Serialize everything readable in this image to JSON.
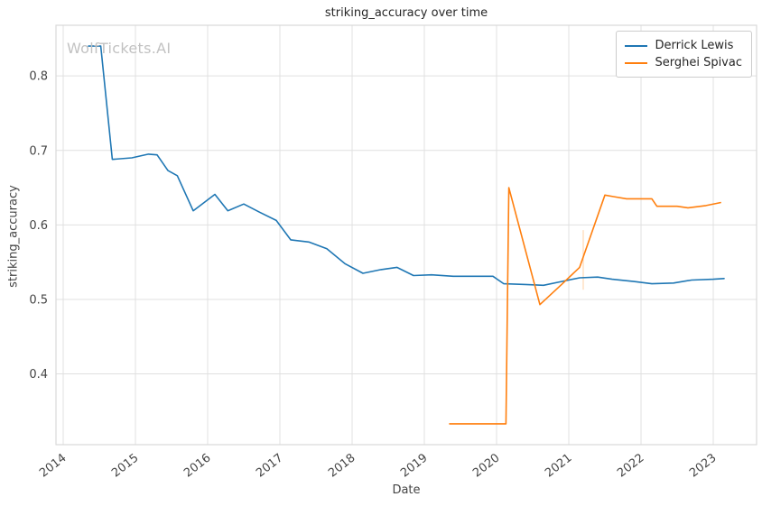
{
  "figure": {
    "watermark": "WolfTickets.AI"
  },
  "chart_data": {
    "type": "line",
    "title": "striking_accuracy over time",
    "xlabel": "Date",
    "ylabel": "striking_accuracy",
    "xlim": [
      2013.9,
      2023.6
    ],
    "ylim": [
      0.305,
      0.868
    ],
    "xticks": [
      2014,
      2015,
      2016,
      2017,
      2018,
      2019,
      2020,
      2021,
      2022,
      2023
    ],
    "yticks": [
      0.4,
      0.5,
      0.6,
      0.7,
      0.8
    ],
    "grid": true,
    "legend_position": "upper right",
    "colors": {
      "grid": "#e0e0e0",
      "axis_border": "#d9d9d9",
      "tick_text": "#444444",
      "title_text": "#262626",
      "watermark_text": "#c2c2c2",
      "series_blue": "#1f77b4",
      "series_orange": "#ff7f0e"
    },
    "series": [
      {
        "name": "Derrick Lewis",
        "color": "#1f77b4",
        "x": [
          2014.35,
          2014.52,
          2014.68,
          2014.95,
          2015.18,
          2015.3,
          2015.45,
          2015.58,
          2015.8,
          2016.1,
          2016.28,
          2016.5,
          2016.72,
          2016.95,
          2017.15,
          2017.4,
          2017.65,
          2017.9,
          2018.15,
          2018.4,
          2018.62,
          2018.85,
          2019.1,
          2019.4,
          2019.7,
          2019.95,
          2020.1,
          2020.4,
          2020.65,
          2020.9,
          2021.15,
          2021.4,
          2021.6,
          2021.9,
          2022.15,
          2022.45,
          2022.7,
          2023.0,
          2023.15
        ],
        "y": [
          0.84,
          0.84,
          0.688,
          0.69,
          0.695,
          0.694,
          0.673,
          0.666,
          0.619,
          0.641,
          0.619,
          0.628,
          0.617,
          0.606,
          0.58,
          0.577,
          0.568,
          0.548,
          0.535,
          0.54,
          0.543,
          0.532,
          0.533,
          0.531,
          0.531,
          0.531,
          0.521,
          0.52,
          0.519,
          0.524,
          0.529,
          0.53,
          0.527,
          0.524,
          0.521,
          0.522,
          0.526,
          0.527,
          0.528
        ]
      },
      {
        "name": "Serghei Spivac",
        "color": "#ff7f0e",
        "x": [
          2019.35,
          2019.7,
          2020.0,
          2020.13,
          2020.17,
          2020.6,
          2020.9,
          2021.15,
          2021.5,
          2021.62,
          2021.8,
          2022.15,
          2022.22,
          2022.5,
          2022.65,
          2022.9,
          2023.1
        ],
        "y": [
          0.333,
          0.333,
          0.333,
          0.333,
          0.65,
          0.493,
          0.52,
          0.543,
          0.64,
          0.638,
          0.635,
          0.635,
          0.625,
          0.625,
          0.623,
          0.626,
          0.63
        ]
      }
    ],
    "annotations": [
      {
        "type": "faint-vertical-line",
        "x": 2021.2,
        "y1": 0.513,
        "y2": 0.593,
        "color": "#ff7f0e",
        "opacity": 0.3
      }
    ]
  }
}
